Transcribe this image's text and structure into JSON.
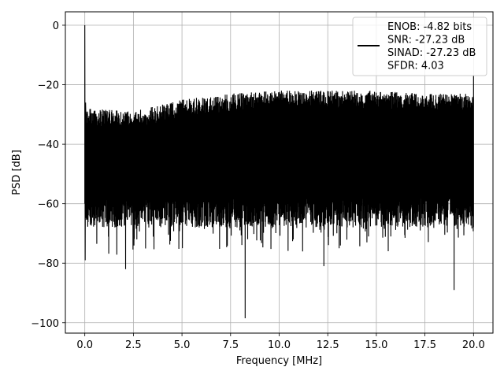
{
  "chart_data": {
    "type": "line",
    "title": "",
    "xlabel": "Frequency [MHz]",
    "ylabel": "PSD [dB]",
    "xlim": [
      -1.0,
      21.0
    ],
    "ylim": [
      -103.5,
      4.5
    ],
    "grid": true,
    "legend_position": "top-right",
    "x_ticks": [
      0.0,
      2.5,
      5.0,
      7.5,
      10.0,
      12.5,
      15.0,
      17.5,
      20.0
    ],
    "x_tick_labels": [
      "0.0",
      "2.5",
      "5.0",
      "7.5",
      "10.0",
      "12.5",
      "15.0",
      "17.5",
      "20.0"
    ],
    "y_ticks": [
      0,
      -20,
      -40,
      -60,
      -80,
      -100
    ],
    "y_tick_labels": [
      "0",
      "−20",
      "−40",
      "−60",
      "−80",
      "−100"
    ],
    "series": [
      {
        "name": "ENOB: -4.82 bits\nSNR: -27.23 dB\nSINAD: -27.23 dB\nSFDR: 4.03",
        "color": "#000000",
        "x_range": [
          0.0,
          20.0
        ],
        "peak": {
          "x": 0.0,
          "y": 0.0
        },
        "upper_envelope_approx": [
          {
            "x": 0.1,
            "y": -25
          },
          {
            "x": 2.5,
            "y": -26
          },
          {
            "x": 5.0,
            "y": -22
          },
          {
            "x": 7.5,
            "y": -20
          },
          {
            "x": 10.0,
            "y": -19
          },
          {
            "x": 12.5,
            "y": -19
          },
          {
            "x": 15.0,
            "y": -19
          },
          {
            "x": 17.5,
            "y": -20
          },
          {
            "x": 20.0,
            "y": -20
          }
        ],
        "notable_minima": [
          {
            "x": 2.1,
            "y": -82
          },
          {
            "x": 8.25,
            "y": -98.5
          },
          {
            "x": 12.3,
            "y": -81
          },
          {
            "x": 19.0,
            "y": -89
          }
        ],
        "end_spike": {
          "x": 20.0,
          "y": -17
        }
      }
    ]
  },
  "legend": {
    "lines": [
      "ENOB: -4.82 bits",
      "SNR: -27.23 dB",
      "SINAD: -27.23 dB",
      "SFDR: 4.03"
    ]
  }
}
